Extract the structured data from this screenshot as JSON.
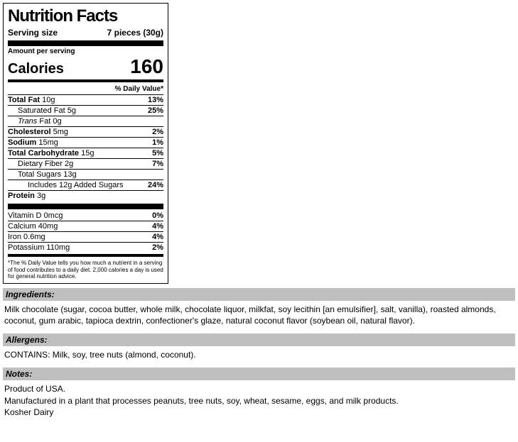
{
  "panel": {
    "title": "Nutrition Facts",
    "serving_label": "Serving size",
    "serving_value": "7 pieces (30g)",
    "amount_per": "Amount per serving",
    "calories_label": "Calories",
    "calories_value": "160",
    "dv_header": "% Daily Value*",
    "rows": {
      "total_fat": {
        "name": "Total Fat",
        "amt": "10g",
        "dv": "13%"
      },
      "sat_fat": {
        "name": "Saturated Fat",
        "amt": "5g",
        "dv": "25%"
      },
      "trans_fat": {
        "name": "Trans Fat",
        "amt": "0g",
        "dv": ""
      },
      "cholesterol": {
        "name": "Cholesterol",
        "amt": "5mg",
        "dv": "2%"
      },
      "sodium": {
        "name": "Sodium",
        "amt": "15mg",
        "dv": "1%"
      },
      "total_carb": {
        "name": "Total Carbohydrate",
        "amt": "15g",
        "dv": "5%"
      },
      "fiber": {
        "name": "Dietary Fiber",
        "amt": "2g",
        "dv": "7%"
      },
      "total_sugars": {
        "name": "Total Sugars",
        "amt": "13g",
        "dv": ""
      },
      "added_sugars": {
        "name": "Includes 12g Added Sugars",
        "amt": "",
        "dv": "24%"
      },
      "protein": {
        "name": "Protein",
        "amt": "3g",
        "dv": ""
      },
      "vitd": {
        "name": "Vitamin D",
        "amt": "0mcg",
        "dv": "0%"
      },
      "calcium": {
        "name": "Calcium",
        "amt": "40mg",
        "dv": "4%"
      },
      "iron": {
        "name": "Iron",
        "amt": "0.6mg",
        "dv": "4%"
      },
      "potassium": {
        "name": "Potassium",
        "amt": "110mg",
        "dv": "2%"
      }
    },
    "footer": "*The % Daily Value tells you how much a nutrient in a serving of food contributes to a daily diet. 2,000 calories a day is used for general nutrition advice."
  },
  "ingredients": {
    "header": "Ingredients:",
    "text": "Milk chocolate (sugar, cocoa butter, whole milk, chocolate liquor, milkfat, soy lecithin [an emulsifier], salt, vanilla), roasted almonds, coconut, gum arabic, tapioca dextrin, confectioner's glaze, natural coconut flavor (soybean oil, natural flavor)."
  },
  "allergens": {
    "header": "Allergens:",
    "text": "CONTAINS: Milk, soy, tree nuts (almond, coconut)."
  },
  "notes": {
    "header": "Notes:",
    "line1": "Product of USA.",
    "line2": "Manufactured in a plant that processes peanuts, tree nuts, soy, wheat, sesame, eggs, and milk products.",
    "line3": "Kosher Dairy"
  },
  "colors": {
    "bar_bg": "#bfbfbf",
    "rule": "#000000",
    "text": "#000000",
    "bg": "#ffffff"
  }
}
